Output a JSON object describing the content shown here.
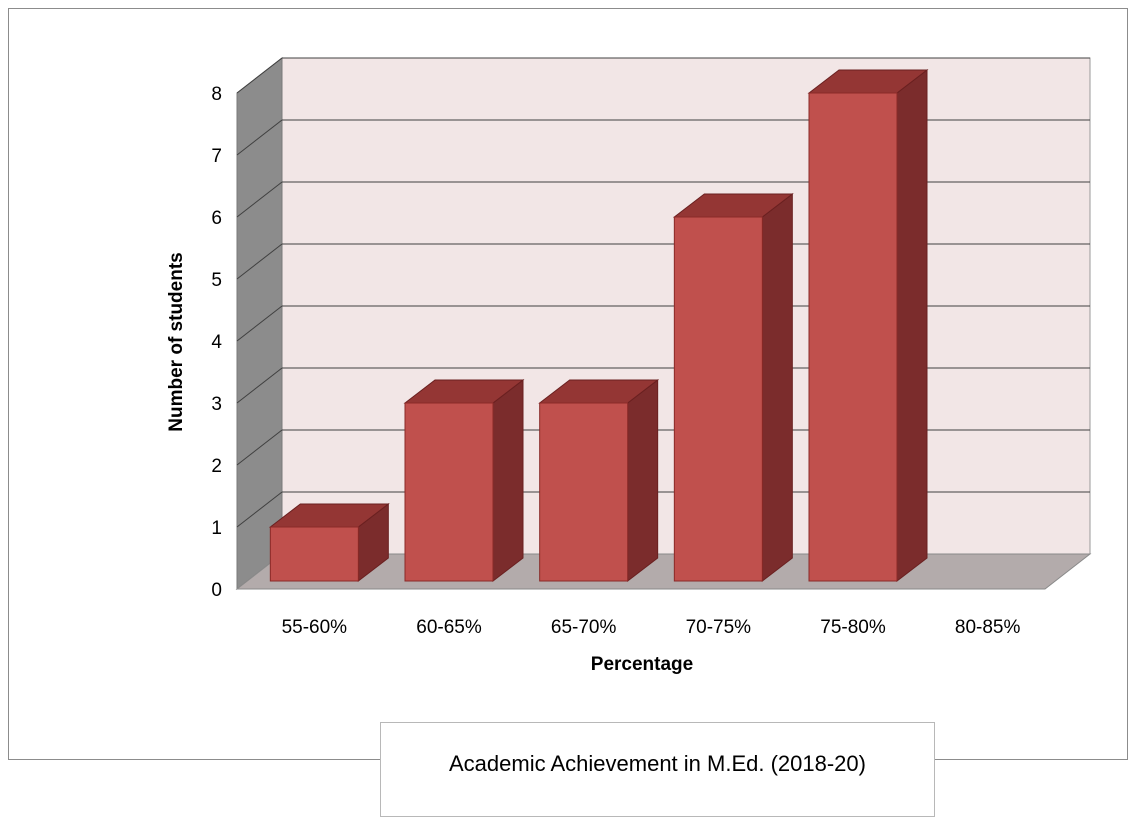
{
  "chart_data": {
    "type": "bar",
    "title": "Academic Achievement in M.Ed. (2018-20)",
    "xlabel": "Percentage",
    "ylabel": "Number of students",
    "categories": [
      "55-60%",
      "60-65%",
      "65-70%",
      "70-75%",
      "75-80%",
      "80-85%"
    ],
    "values": [
      1,
      3,
      3,
      6,
      8,
      0
    ],
    "ylim": [
      0,
      8
    ],
    "yticks": [
      "0",
      "1",
      "2",
      "3",
      "4",
      "5",
      "6",
      "7",
      "8"
    ],
    "grid": true,
    "legend": "none",
    "style": "3d-column"
  },
  "colors": {
    "bar_front": "#c0504d",
    "bar_top": "#943634",
    "bar_side": "#7b2c2c",
    "back_wall": "#f2e6e6",
    "side_wall": "#8c8c8c",
    "floor": "#b3abab",
    "gridline": "#404040"
  }
}
